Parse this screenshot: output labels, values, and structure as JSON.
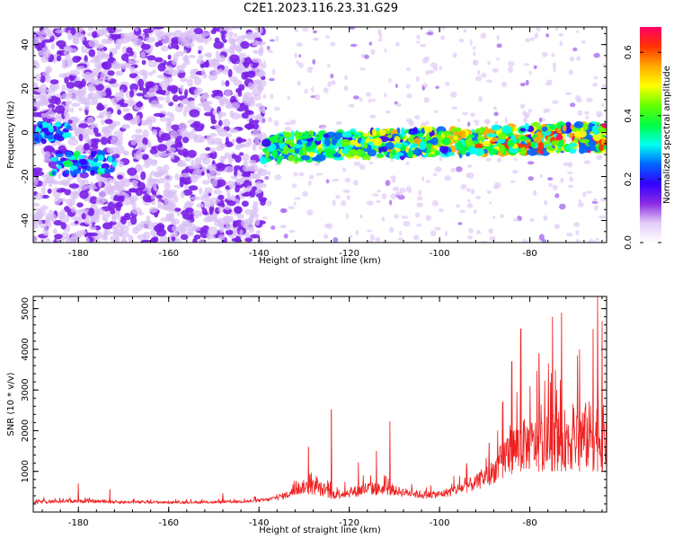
{
  "figure": {
    "title": "C2E1.2023.116.23.31.G29"
  },
  "chart_data": [
    {
      "type": "heatmap",
      "title": "C2E1.2023.116.23.31.G29",
      "xlabel": "Height of straight line (km)",
      "ylabel": "Frequency (Hz)",
      "xlim": [
        -190,
        -63
      ],
      "ylim": [
        -50,
        48
      ],
      "xticks": [
        -180,
        -160,
        -140,
        -120,
        -100,
        -80
      ],
      "yticks": [
        -40,
        -20,
        0,
        20,
        40
      ],
      "colorbar": {
        "label": "Normalized spectral amplitude",
        "range": [
          0.0,
          0.68
        ],
        "ticks": [
          0.0,
          0.2,
          0.4,
          0.6
        ],
        "colormap": [
          "#ffffff",
          "#e4ccf7",
          "#8a2be2",
          "#3300ff",
          "#0066ff",
          "#00ffee",
          "#00ff44",
          "#66ff00",
          "#ffff00",
          "#ffaa00",
          "#ff3300",
          "#ff0066"
        ]
      },
      "features": {
        "dense_noise_x_range": [
          -190,
          -139
        ],
        "sparse_noise_x_range": [
          -139,
          -63
        ],
        "signal_band_start_x": -139,
        "signal_band_center_freq_start": -7,
        "signal_band_center_freq_end": -2,
        "early_signal_blob_x": -179,
        "early_signal_blob_freq": -14
      }
    },
    {
      "type": "line",
      "xlabel": "Height of straight line (km)",
      "ylabel": "SNR (10 * v/v)",
      "xlim": [
        -190,
        -63
      ],
      "ylim": [
        0,
        5300
      ],
      "xticks": [
        -180,
        -160,
        -140,
        -120,
        -100,
        -80
      ],
      "yticks": [
        1000,
        2000,
        3000,
        4000,
        5000
      ],
      "color": "#ee2222",
      "envelope": [
        [
          -190,
          200,
          300
        ],
        [
          -185,
          220,
          300
        ],
        [
          -180,
          230,
          320
        ],
        [
          -175,
          220,
          300
        ],
        [
          -170,
          210,
          280
        ],
        [
          -160,
          210,
          270
        ],
        [
          -150,
          210,
          270
        ],
        [
          -142,
          230,
          300
        ],
        [
          -138,
          260,
          350
        ],
        [
          -134,
          330,
          500
        ],
        [
          -130,
          450,
          800
        ],
        [
          -127,
          400,
          800
        ],
        [
          -124,
          320,
          550
        ],
        [
          -120,
          350,
          600
        ],
        [
          -116,
          400,
          750
        ],
        [
          -112,
          420,
          700
        ],
        [
          -108,
          380,
          600
        ],
        [
          -104,
          330,
          520
        ],
        [
          -100,
          340,
          520
        ],
        [
          -96,
          420,
          700
        ],
        [
          -92,
          520,
          900
        ],
        [
          -88,
          700,
          1300
        ],
        [
          -85,
          900,
          2000
        ],
        [
          -82,
          1000,
          2300
        ],
        [
          -78,
          1000,
          2300
        ],
        [
          -74,
          1000,
          2500
        ],
        [
          -70,
          1000,
          2600
        ],
        [
          -66,
          1000,
          2800
        ],
        [
          -63,
          1000,
          2600
        ]
      ],
      "spikes": [
        [
          -180,
          700
        ],
        [
          -173,
          560
        ],
        [
          -148,
          460
        ],
        [
          -129,
          1600
        ],
        [
          -124,
          2520
        ],
        [
          -118,
          1220
        ],
        [
          -114,
          1500
        ],
        [
          -111,
          2230
        ],
        [
          -94,
          1200
        ],
        [
          -89,
          1700
        ],
        [
          -86,
          2700
        ],
        [
          -84,
          3700
        ],
        [
          -82,
          4500
        ],
        [
          -78,
          3900
        ],
        [
          -75,
          4800
        ],
        [
          -73,
          4900
        ],
        [
          -69,
          4000
        ],
        [
          -66,
          4500
        ],
        [
          -65,
          5300
        ],
        [
          -64,
          4700
        ]
      ]
    }
  ]
}
